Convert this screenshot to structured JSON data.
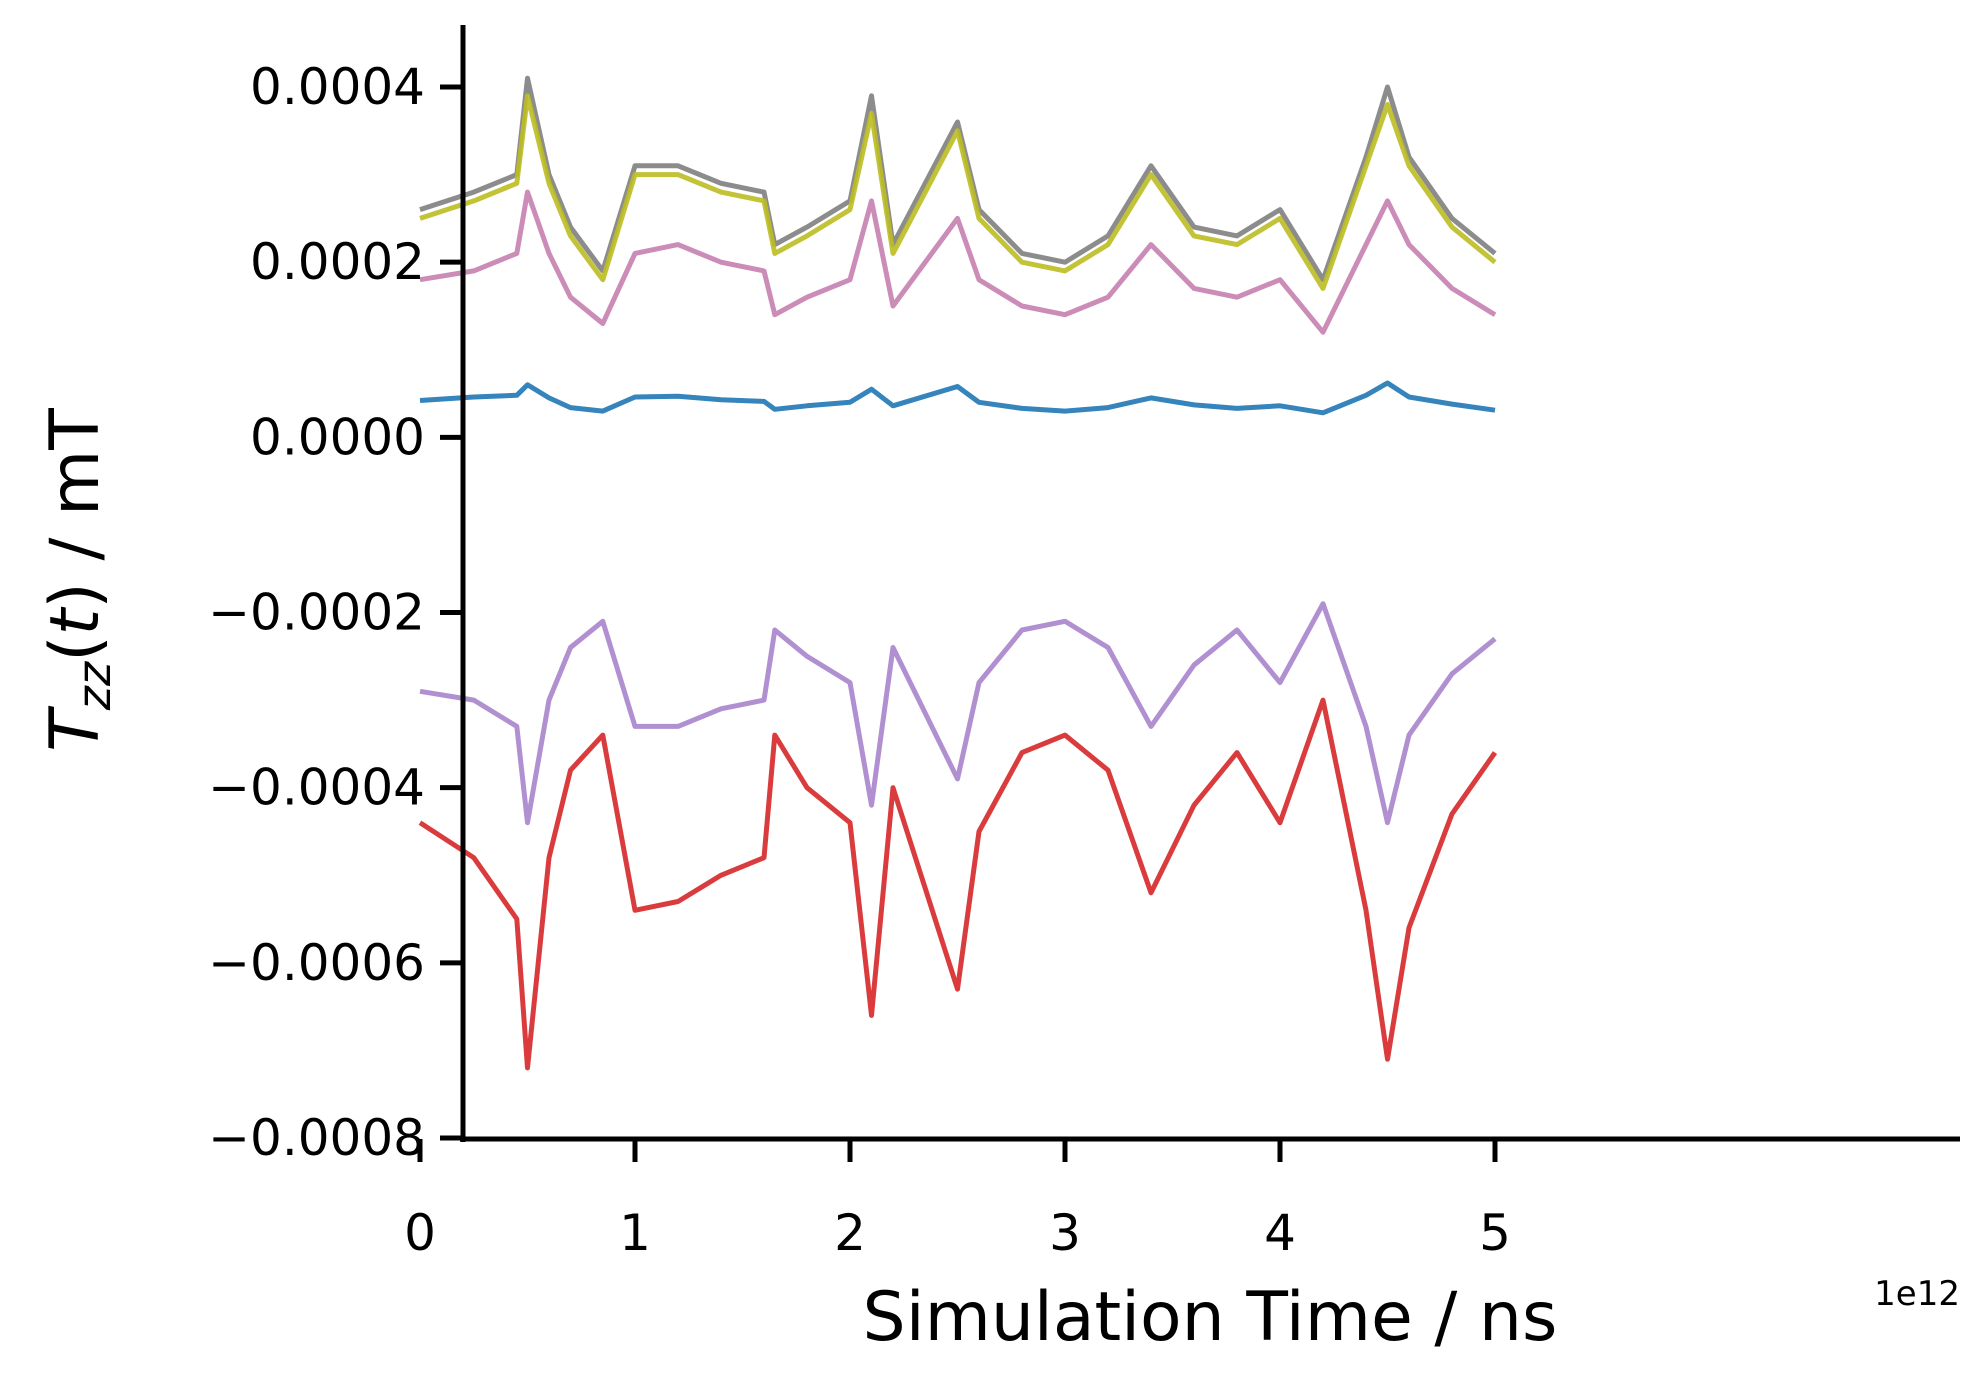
{
  "chart_data": {
    "type": "line",
    "xlabel": "Simulation Time / ns",
    "ylabel_prefix": "T",
    "ylabel_sub": "zz",
    "ylabel_suffix": "(t)",
    "ylabel_var": "t",
    "ylabel_unit": " / mT",
    "x_offset_label": "1e12",
    "xlim": [
      -0.25,
      5.25
    ],
    "ylim": [
      -0.0008,
      0.0005
    ],
    "x_ticks": [
      0,
      1,
      2,
      3,
      4,
      5
    ],
    "x_tick_labels": [
      "0",
      "1",
      "2",
      "3",
      "4",
      "5"
    ],
    "y_ticks": [
      0.0004,
      0.0002,
      0.0,
      -0.0002,
      -0.0004,
      -0.0006,
      -0.0008
    ],
    "y_tick_labels": [
      "0.0004",
      "0.0002",
      "0.0000",
      "−0.0002",
      "−0.0004",
      "−0.0006",
      "−0.0008"
    ],
    "grid": false,
    "x": [
      0,
      0.25,
      0.45,
      0.5,
      0.6,
      0.7,
      0.85,
      1.0,
      1.2,
      1.4,
      1.6,
      1.65,
      1.8,
      2.0,
      2.1,
      2.2,
      2.5,
      2.6,
      2.8,
      3.0,
      3.2,
      3.4,
      3.6,
      3.8,
      4.0,
      4.2,
      4.4,
      4.5,
      4.6,
      4.8,
      5.0
    ],
    "series": [
      {
        "color": "#7f7f7f",
        "values": [
          0.00026,
          0.00028,
          0.0003,
          0.00041,
          0.0003,
          0.00024,
          0.00019,
          0.00031,
          0.00031,
          0.00029,
          0.00028,
          0.00022,
          0.00024,
          0.00027,
          0.00039,
          0.00022,
          0.00036,
          0.00026,
          0.00021,
          0.0002,
          0.00023,
          0.00031,
          0.00024,
          0.00023,
          0.00026,
          0.00018,
          0.00032,
          0.0004,
          0.00032,
          0.00025,
          0.00021
        ]
      },
      {
        "color": "#bcbd22",
        "values": [
          0.00025,
          0.00027,
          0.00029,
          0.00039,
          0.00029,
          0.00023,
          0.00018,
          0.0003,
          0.0003,
          0.00028,
          0.00027,
          0.00021,
          0.00023,
          0.00026,
          0.00037,
          0.00021,
          0.00035,
          0.00025,
          0.0002,
          0.00019,
          0.00022,
          0.0003,
          0.00023,
          0.00022,
          0.00025,
          0.00017,
          0.00031,
          0.00038,
          0.00031,
          0.00024,
          0.0002
        ]
      },
      {
        "color": "#c77fb0",
        "values": [
          0.00018,
          0.00019,
          0.00021,
          0.00028,
          0.00021,
          0.00016,
          0.00013,
          0.00021,
          0.00022,
          0.0002,
          0.00019,
          0.00014,
          0.00016,
          0.00018,
          0.00027,
          0.00015,
          0.00025,
          0.00018,
          0.00015,
          0.00014,
          0.00016,
          0.00022,
          0.00017,
          0.00016,
          0.00018,
          0.00012,
          0.00022,
          0.00027,
          0.00022,
          0.00017,
          0.00014
        ]
      },
      {
        "color": "#1f77b4",
        "values": [
          4.2e-05,
          4.6e-05,
          4.8e-05,
          6e-05,
          4.5e-05,
          3.4e-05,
          3e-05,
          4.6e-05,
          4.7e-05,
          4.3e-05,
          4.1e-05,
          3.2e-05,
          3.6e-05,
          4e-05,
          5.5e-05,
          3.6e-05,
          5.8e-05,
          4e-05,
          3.3e-05,
          3e-05,
          3.4e-05,
          4.5e-05,
          3.7e-05,
          3.3e-05,
          3.6e-05,
          2.8e-05,
          4.8e-05,
          6.2e-05,
          4.6e-05,
          3.8e-05,
          3.1e-05
        ]
      },
      {
        "color": "#a884cc",
        "values": [
          -0.00029,
          -0.0003,
          -0.00033,
          -0.00044,
          -0.0003,
          -0.00024,
          -0.00021,
          -0.00033,
          -0.00033,
          -0.00031,
          -0.0003,
          -0.00022,
          -0.00025,
          -0.00028,
          -0.00042,
          -0.00024,
          -0.00039,
          -0.00028,
          -0.00022,
          -0.00021,
          -0.00024,
          -0.00033,
          -0.00026,
          -0.00022,
          -0.00028,
          -0.00019,
          -0.00033,
          -0.00044,
          -0.00034,
          -0.00027,
          -0.00023
        ]
      },
      {
        "color": "#d62728",
        "values": [
          -0.00044,
          -0.00048,
          -0.00055,
          -0.00072,
          -0.00048,
          -0.00038,
          -0.00034,
          -0.00054,
          -0.00053,
          -0.0005,
          -0.00048,
          -0.00034,
          -0.0004,
          -0.00044,
          -0.00066,
          -0.0004,
          -0.00063,
          -0.00045,
          -0.00036,
          -0.00034,
          -0.00038,
          -0.00052,
          -0.00042,
          -0.00036,
          -0.00044,
          -0.0003,
          -0.00054,
          -0.00071,
          -0.00056,
          -0.00043,
          -0.00036
        ]
      }
    ]
  }
}
